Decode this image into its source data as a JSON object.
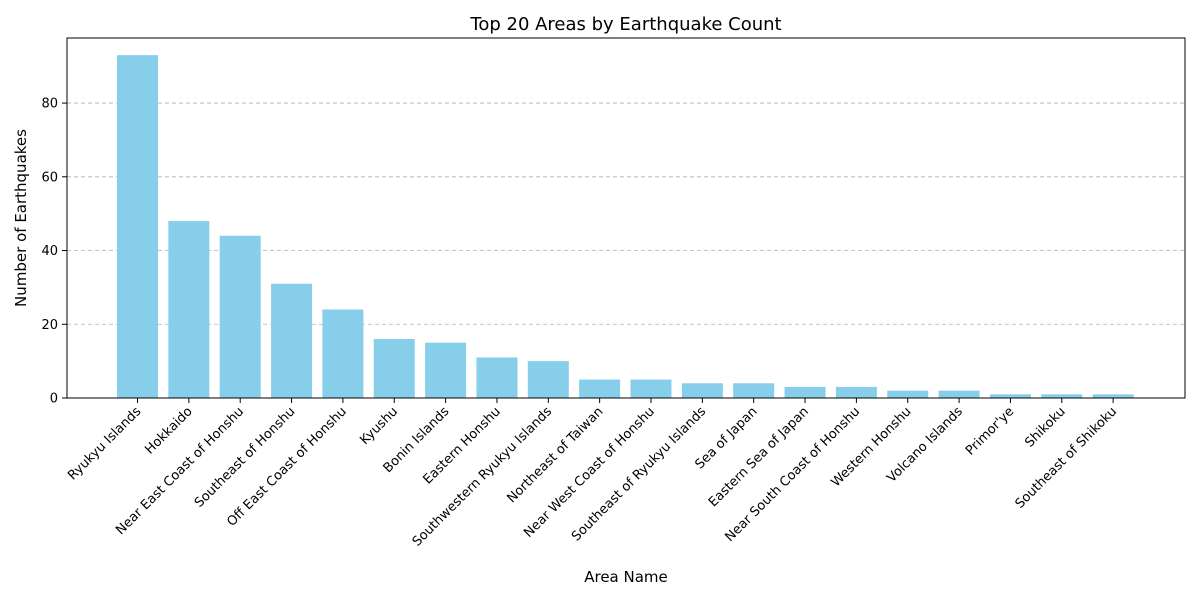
{
  "chart_data": {
    "type": "bar",
    "title": "Top 20 Areas by Earthquake Count",
    "xlabel": "Area Name",
    "ylabel": "Number of Earthquakes",
    "categories": [
      "Ryukyu Islands",
      "Hokkaido",
      "Near East Coast of Honshu",
      "Southeast of Honshu",
      "Off East Coast of Honshu",
      "Kyushu",
      "Bonin Islands",
      "Eastern Honshu",
      "Southwestern Ryukyu Islands",
      "Northeast of Taiwan",
      "Near West Coast of Honshu",
      "Southeast of Ryukyu Islands",
      "Sea of Japan",
      "Eastern Sea of Japan",
      "Near South Coast of Honshu",
      "Western Honshu",
      "Volcano Islands",
      "Primor'ye",
      "Shikoku",
      "Southeast of Shikoku"
    ],
    "values": [
      93,
      48,
      44,
      31,
      24,
      16,
      15,
      11,
      10,
      5,
      5,
      4,
      4,
      3,
      3,
      2,
      2,
      1,
      1,
      1
    ],
    "ylim": [
      0,
      97.65
    ],
    "yticks": [
      0,
      20,
      40,
      60,
      80
    ],
    "grid": "y-dashed",
    "bar_color": "#87ceeb",
    "legend": "none"
  }
}
